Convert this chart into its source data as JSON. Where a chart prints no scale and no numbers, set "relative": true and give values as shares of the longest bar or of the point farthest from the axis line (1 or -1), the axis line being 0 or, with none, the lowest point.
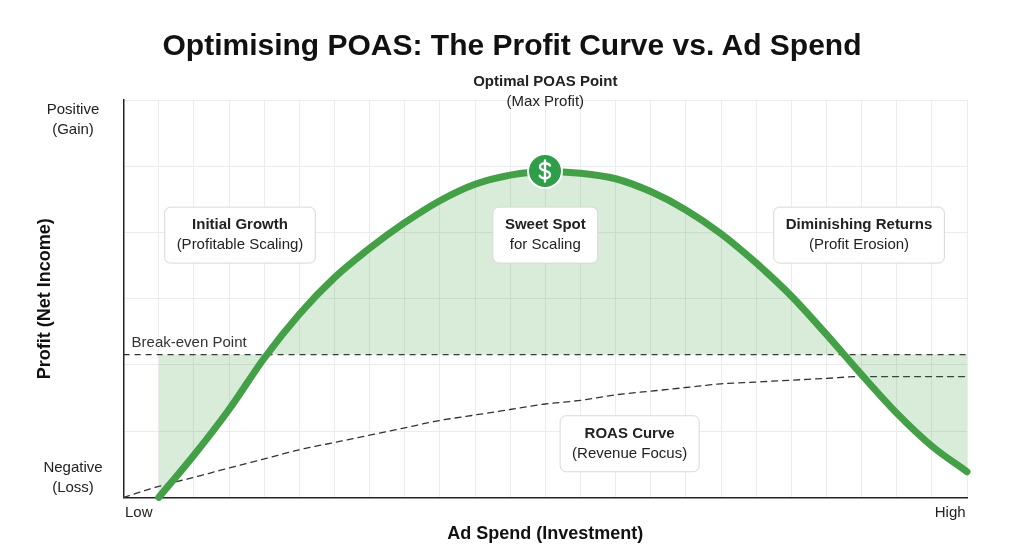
{
  "chart_data": {
    "type": "line",
    "relative": true,
    "title": "Optimising POAS: The Profit Curve vs. Ad Spend",
    "xlabel": "Ad Spend (Investment)",
    "ylabel": "Profit (Net Income)",
    "grid": true,
    "legend": false,
    "marker": "none",
    "categories": [
      null,
      null,
      null,
      null,
      null,
      null,
      null,
      null,
      null,
      null,
      null,
      null,
      null,
      null,
      null,
      null,
      null,
      null,
      null,
      null,
      null,
      null,
      null,
      null,
      null
    ],
    "series": [
      {
        "type": "area",
        "color": "#43a047",
        "values": [
          null,
          -0.78,
          -0.55,
          -0.3,
          -0.02,
          0.22,
          0.42,
          0.58,
          0.72,
          0.84,
          0.93,
          0.98,
          1.0,
          0.99,
          0.96,
          0.89,
          0.79,
          0.66,
          0.5,
          0.32,
          0.11,
          -0.11,
          -0.32,
          -0.5,
          -0.64
        ]
      },
      {
        "color": "#333333",
        "line_style": "dashed",
        "values": [
          -0.78,
          -0.72,
          -0.67,
          -0.62,
          -0.57,
          -0.52,
          -0.48,
          -0.44,
          -0.4,
          -0.36,
          -0.33,
          -0.3,
          -0.27,
          -0.25,
          -0.22,
          -0.2,
          -0.18,
          -0.16,
          -0.15,
          -0.14,
          -0.13,
          -0.12,
          -0.12,
          -0.12,
          -0.12
        ]
      }
    ],
    "ref_lines": [
      {
        "axis": "y",
        "value": 0,
        "label": "Break-even Point",
        "color": "#333333",
        "line_style": "dashed"
      }
    ],
    "annotations": [
      "Optimal POAS Point\n(Max Profit)",
      "Initial Growth\n(Profitable Scaling)",
      "Sweet Spot\nfor Scaling",
      "Diminishing Returns\n(Profit Erosion)",
      "ROAS Curve\n(Revenue Focus)",
      "Positive\n(Gain)",
      "Negative\n(Loss)",
      "Low",
      "High"
    ]
  }
}
